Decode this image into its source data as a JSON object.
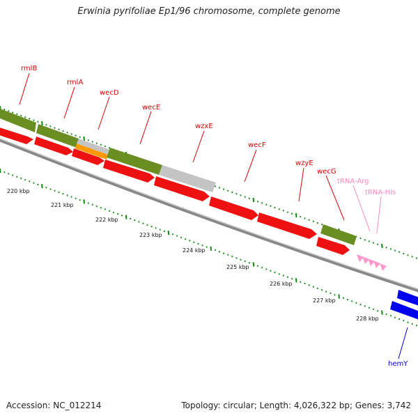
{
  "title": "Erwinia pyrifoliae Ep1/96 chromosome, complete genome",
  "footer": {
    "accession": "Accession: NC_012214",
    "summary": "Topology: circular; Length: 4,026,322 bp; Genes: 3,742"
  },
  "colors": {
    "cds": "#ee1111",
    "rna": "#6b8e23",
    "gray_feature": "#bbbbbb",
    "orange_feature": "#ff9900",
    "trna": "#ff99cc",
    "blue_gene": "#0000ee",
    "backbone": "#888888",
    "tick": "#118811"
  },
  "scale_labels": [
    "220 kbp",
    "221 kbp",
    "222 kbp",
    "223 kbp",
    "224 kbp",
    "225 kbp",
    "226 kbp",
    "227 kbp",
    "228 kbp"
  ],
  "gene_labels": [
    {
      "name": "rmlB",
      "color": "#dd0000"
    },
    {
      "name": "rmlA",
      "color": "#dd0000"
    },
    {
      "name": "wecD",
      "color": "#dd0000"
    },
    {
      "name": "wecE",
      "color": "#dd0000"
    },
    {
      "name": "wzxE",
      "color": "#dd0000"
    },
    {
      "name": "wecF",
      "color": "#dd0000"
    },
    {
      "name": "wzyE",
      "color": "#dd0000"
    },
    {
      "name": "wecG",
      "color": "#dd0000"
    },
    {
      "name": "tRNA-Arg",
      "color": "#ff88bb"
    },
    {
      "name": "tRNA-His",
      "color": "#ff88bb"
    },
    {
      "name": "hemY",
      "color": "#0000dd"
    }
  ]
}
